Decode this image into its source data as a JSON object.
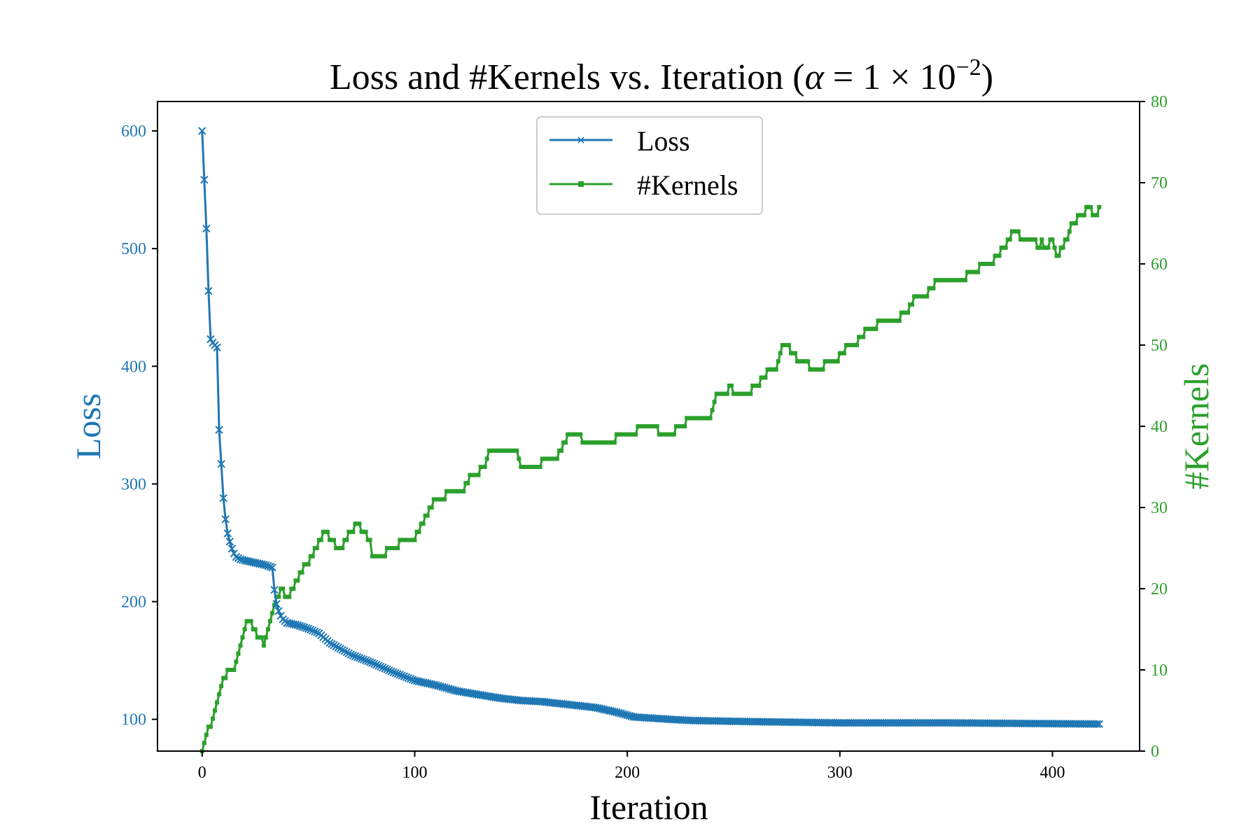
{
  "chart_data": {
    "type": "line",
    "title_main": "Loss and #Kernels vs. Iteration (",
    "title_alpha": "α",
    "title_eq": " = 1 × 10",
    "title_exp": "−2",
    "title_close": ")",
    "xlabel": "Iteration",
    "ylabel_left": "Loss",
    "ylabel_right": "#Kernels",
    "xlim": [
      -21,
      441
    ],
    "ylim_left": [
      73,
      625
    ],
    "ylim_right": [
      0,
      80
    ],
    "xticks": [
      0,
      100,
      200,
      300,
      400
    ],
    "yticks_left": [
      100,
      200,
      300,
      400,
      500,
      600
    ],
    "yticks_right": [
      0,
      10,
      20,
      30,
      40,
      50,
      60,
      70,
      80
    ],
    "legend_position": "upper center",
    "legend": [
      "Loss",
      "#Kernels"
    ],
    "colors": {
      "loss": "#1f77b4",
      "kernels": "#2ca02c",
      "axis": "#000000"
    },
    "loss_keypoints": [
      [
        0,
        600
      ],
      [
        2,
        517
      ],
      [
        3,
        464
      ],
      [
        4,
        423
      ],
      [
        5,
        420
      ],
      [
        6,
        418
      ],
      [
        7,
        416
      ],
      [
        8,
        346
      ],
      [
        9,
        317
      ],
      [
        10,
        288
      ],
      [
        11,
        270
      ],
      [
        12,
        258
      ],
      [
        13,
        251
      ],
      [
        14,
        245
      ],
      [
        15,
        241
      ],
      [
        16,
        238
      ],
      [
        18,
        236
      ],
      [
        20,
        235
      ],
      [
        25,
        233
      ],
      [
        30,
        231
      ],
      [
        33,
        229
      ],
      [
        34,
        210
      ],
      [
        35,
        198
      ],
      [
        36,
        192
      ],
      [
        37,
        188
      ],
      [
        38,
        185
      ],
      [
        40,
        182
      ],
      [
        45,
        180
      ],
      [
        50,
        177
      ],
      [
        55,
        173
      ],
      [
        60,
        165
      ],
      [
        65,
        160
      ],
      [
        70,
        155
      ],
      [
        80,
        148
      ],
      [
        90,
        140
      ],
      [
        100,
        133
      ],
      [
        110,
        129
      ],
      [
        120,
        124
      ],
      [
        130,
        121
      ],
      [
        140,
        118
      ],
      [
        150,
        116
      ],
      [
        160,
        115
      ],
      [
        170,
        113
      ],
      [
        185,
        110
      ],
      [
        195,
        106
      ],
      [
        203,
        102
      ],
      [
        220,
        100
      ],
      [
        230,
        99
      ],
      [
        260,
        98
      ],
      [
        300,
        97
      ],
      [
        350,
        97
      ],
      [
        422,
        96
      ]
    ],
    "kernel_keypoints": [
      [
        0,
        0
      ],
      [
        1,
        1
      ],
      [
        2,
        2
      ],
      [
        3,
        3
      ],
      [
        5,
        4
      ],
      [
        6,
        5
      ],
      [
        7,
        6
      ],
      [
        8,
        7
      ],
      [
        9,
        8
      ],
      [
        10,
        9
      ],
      [
        12,
        10
      ],
      [
        16,
        11
      ],
      [
        17,
        12
      ],
      [
        18,
        13
      ],
      [
        19,
        14
      ],
      [
        20,
        15
      ],
      [
        21,
        16
      ],
      [
        24,
        15
      ],
      [
        26,
        14
      ],
      [
        29,
        13
      ],
      [
        30,
        14
      ],
      [
        31,
        15
      ],
      [
        32,
        16
      ],
      [
        33,
        17
      ],
      [
        34,
        18
      ],
      [
        35,
        19
      ],
      [
        37,
        20
      ],
      [
        39,
        19
      ],
      [
        42,
        20
      ],
      [
        44,
        21
      ],
      [
        46,
        22
      ],
      [
        48,
        23
      ],
      [
        51,
        24
      ],
      [
        53,
        25
      ],
      [
        55,
        26
      ],
      [
        57,
        27
      ],
      [
        60,
        26
      ],
      [
        63,
        25
      ],
      [
        67,
        26
      ],
      [
        69,
        27
      ],
      [
        72,
        28
      ],
      [
        75,
        27
      ],
      [
        78,
        26
      ],
      [
        80,
        24
      ],
      [
        87,
        25
      ],
      [
        93,
        26
      ],
      [
        101,
        27
      ],
      [
        103,
        28
      ],
      [
        105,
        29
      ],
      [
        107,
        30
      ],
      [
        109,
        31
      ],
      [
        115,
        32
      ],
      [
        124,
        33
      ],
      [
        126,
        34
      ],
      [
        131,
        35
      ],
      [
        134,
        36
      ],
      [
        135,
        37
      ],
      [
        149,
        36
      ],
      [
        150,
        35
      ],
      [
        160,
        36
      ],
      [
        168,
        37
      ],
      [
        170,
        38
      ],
      [
        172,
        39
      ],
      [
        179,
        38
      ],
      [
        195,
        39
      ],
      [
        205,
        40
      ],
      [
        215,
        39
      ],
      [
        223,
        40
      ],
      [
        228,
        41
      ],
      [
        240,
        42
      ],
      [
        241,
        43
      ],
      [
        242,
        44
      ],
      [
        248,
        45
      ],
      [
        250,
        44
      ],
      [
        259,
        45
      ],
      [
        263,
        46
      ],
      [
        266,
        47
      ],
      [
        271,
        48
      ],
      [
        272,
        49
      ],
      [
        273,
        50
      ],
      [
        277,
        49
      ],
      [
        280,
        48
      ],
      [
        286,
        47
      ],
      [
        293,
        48
      ],
      [
        300,
        49
      ],
      [
        303,
        50
      ],
      [
        309,
        51
      ],
      [
        312,
        52
      ],
      [
        318,
        53
      ],
      [
        329,
        54
      ],
      [
        333,
        55
      ],
      [
        335,
        56
      ],
      [
        342,
        57
      ],
      [
        345,
        58
      ],
      [
        352,
        58
      ],
      [
        355,
        58
      ],
      [
        360,
        59
      ],
      [
        366,
        60
      ],
      [
        373,
        61
      ],
      [
        376,
        62
      ],
      [
        379,
        63
      ],
      [
        381,
        64
      ],
      [
        385,
        63
      ],
      [
        393,
        62
      ],
      [
        395,
        63
      ],
      [
        396,
        62
      ],
      [
        399,
        63
      ],
      [
        401,
        62
      ],
      [
        402,
        61
      ],
      [
        404,
        62
      ],
      [
        406,
        63
      ],
      [
        408,
        64
      ],
      [
        409,
        65
      ],
      [
        412,
        66
      ],
      [
        416,
        67
      ],
      [
        419,
        66
      ],
      [
        422,
        67
      ]
    ]
  }
}
